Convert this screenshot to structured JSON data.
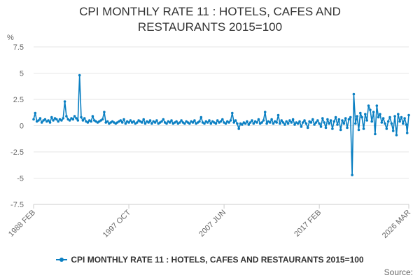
{
  "chart_data": {
    "type": "line",
    "title_lines": [
      "CPI MONTHLY RATE 11 : HOTELS, CAFES AND",
      "RESTAURANTS 2015=100"
    ],
    "ylabel": "%",
    "ylim": [
      -7.5,
      7.5
    ],
    "yticks": [
      "7.5",
      "5",
      "2.5",
      "0",
      "-2.5",
      "-5",
      "-7.5"
    ],
    "ytick_values": [
      7.5,
      5,
      2.5,
      0,
      -2.5,
      -5,
      -7.5
    ],
    "xlim": [
      "1988-02",
      "2026-03"
    ],
    "xticks": [
      {
        "label": "1988 FEB",
        "date": "1988-02"
      },
      {
        "label": "1997 OCT",
        "date": "1997-10"
      },
      {
        "label": "2007 JUN",
        "date": "2007-06"
      },
      {
        "label": "2017 FEB",
        "date": "2017-02"
      },
      {
        "label": "2026 MAR",
        "date": "2026-03"
      }
    ],
    "grid": true,
    "legend_position": "bottom",
    "series": [
      {
        "name": "CPI MONTHLY RATE 11 : HOTELS, CAFES AND RESTAURANTS 2015=100",
        "color": "#0a7fc2",
        "points": [
          [
            "1988-02",
            0.6
          ],
          [
            "1988-04",
            1.2
          ],
          [
            "1988-06",
            0.4
          ],
          [
            "1988-08",
            0.5
          ],
          [
            "1988-10",
            0.7
          ],
          [
            "1988-12",
            0.3
          ],
          [
            "1989-02",
            0.5
          ],
          [
            "1989-04",
            0.6
          ],
          [
            "1989-06",
            0.4
          ],
          [
            "1989-08",
            0.5
          ],
          [
            "1989-10",
            0.3
          ],
          [
            "1989-12",
            0.8
          ],
          [
            "1990-02",
            0.5
          ],
          [
            "1990-04",
            0.7
          ],
          [
            "1990-06",
            0.6
          ],
          [
            "1990-08",
            0.4
          ],
          [
            "1990-10",
            0.6
          ],
          [
            "1990-12",
            0.5
          ],
          [
            "1991-02",
            0.7
          ],
          [
            "1991-04",
            2.3
          ],
          [
            "1991-06",
            0.9
          ],
          [
            "1991-08",
            0.6
          ],
          [
            "1991-10",
            0.5
          ],
          [
            "1991-12",
            0.7
          ],
          [
            "1992-02",
            0.6
          ],
          [
            "1992-04",
            0.9
          ],
          [
            "1992-06",
            0.7
          ],
          [
            "1992-08",
            0.5
          ],
          [
            "1992-10",
            4.8
          ],
          [
            "1992-12",
            0.8
          ],
          [
            "1993-02",
            0.5
          ],
          [
            "1993-04",
            0.7
          ],
          [
            "1993-06",
            0.4
          ],
          [
            "1993-08",
            0.3
          ],
          [
            "1993-10",
            0.5
          ],
          [
            "1993-12",
            0.4
          ],
          [
            "1994-02",
            0.9
          ],
          [
            "1994-04",
            0.5
          ],
          [
            "1994-06",
            0.4
          ],
          [
            "1994-08",
            0.3
          ],
          [
            "1994-10",
            0.4
          ],
          [
            "1994-12",
            0.5
          ],
          [
            "1995-02",
            0.6
          ],
          [
            "1995-04",
            1.3
          ],
          [
            "1995-06",
            0.3
          ],
          [
            "1995-08",
            0.4
          ],
          [
            "1995-10",
            0.2
          ],
          [
            "1995-12",
            0.3
          ],
          [
            "1996-02",
            0.4
          ],
          [
            "1996-04",
            0.3
          ],
          [
            "1996-06",
            0.2
          ],
          [
            "1996-08",
            0.3
          ],
          [
            "1996-10",
            0.4
          ],
          [
            "1996-12",
            0.5
          ],
          [
            "1997-02",
            0.3
          ],
          [
            "1997-04",
            0.6
          ],
          [
            "1997-06",
            0.2
          ],
          [
            "1997-08",
            0.4
          ],
          [
            "1997-10",
            0.3
          ],
          [
            "1997-12",
            0.5
          ],
          [
            "1998-02",
            0.3
          ],
          [
            "1998-04",
            0.4
          ],
          [
            "1998-06",
            0.2
          ],
          [
            "1998-08",
            0.3
          ],
          [
            "1998-10",
            0.5
          ],
          [
            "1998-12",
            0.4
          ],
          [
            "1999-02",
            0.3
          ],
          [
            "1999-04",
            0.6
          ],
          [
            "1999-06",
            0.2
          ],
          [
            "1999-08",
            0.4
          ],
          [
            "1999-10",
            0.3
          ],
          [
            "1999-12",
            0.5
          ],
          [
            "2000-02",
            0.2
          ],
          [
            "2000-04",
            0.4
          ],
          [
            "2000-06",
            0.3
          ],
          [
            "2000-08",
            0.5
          ],
          [
            "2000-10",
            0.2
          ],
          [
            "2000-12",
            0.3
          ],
          [
            "2001-02",
            0.4
          ],
          [
            "2001-04",
            0.6
          ],
          [
            "2001-06",
            0.3
          ],
          [
            "2001-08",
            0.2
          ],
          [
            "2001-10",
            0.4
          ],
          [
            "2001-12",
            0.3
          ],
          [
            "2002-02",
            0.5
          ],
          [
            "2002-04",
            0.2
          ],
          [
            "2002-06",
            0.3
          ],
          [
            "2002-08",
            0.4
          ],
          [
            "2002-10",
            0.2
          ],
          [
            "2002-12",
            0.3
          ],
          [
            "2003-02",
            0.5
          ],
          [
            "2003-04",
            0.3
          ],
          [
            "2003-06",
            0.2
          ],
          [
            "2003-08",
            0.4
          ],
          [
            "2003-10",
            0.3
          ],
          [
            "2003-12",
            0.2
          ],
          [
            "2004-02",
            0.4
          ],
          [
            "2004-04",
            0.3
          ],
          [
            "2004-06",
            0.5
          ],
          [
            "2004-08",
            0.2
          ],
          [
            "2004-10",
            0.3
          ],
          [
            "2004-12",
            0.4
          ],
          [
            "2005-02",
            0.8
          ],
          [
            "2005-04",
            0.3
          ],
          [
            "2005-06",
            0.2
          ],
          [
            "2005-08",
            0.4
          ],
          [
            "2005-10",
            0.3
          ],
          [
            "2005-12",
            0.5
          ],
          [
            "2006-02",
            0.2
          ],
          [
            "2006-04",
            0.4
          ],
          [
            "2006-06",
            0.3
          ],
          [
            "2006-08",
            0.2
          ],
          [
            "2006-10",
            0.5
          ],
          [
            "2006-12",
            0.3
          ],
          [
            "2007-02",
            0.4
          ],
          [
            "2007-04",
            0.6
          ],
          [
            "2007-06",
            0.3
          ],
          [
            "2007-08",
            0.2
          ],
          [
            "2007-10",
            0.4
          ],
          [
            "2007-12",
            0.3
          ],
          [
            "2008-02",
            0.5
          ],
          [
            "2008-04",
            1.2
          ],
          [
            "2008-06",
            0.3
          ],
          [
            "2008-08",
            0.5
          ],
          [
            "2008-10",
            0.2
          ],
          [
            "2008-12",
            -0.3
          ],
          [
            "2009-02",
            0.2
          ],
          [
            "2009-04",
            0.1
          ],
          [
            "2009-06",
            0.3
          ],
          [
            "2009-08",
            0.2
          ],
          [
            "2009-10",
            0.4
          ],
          [
            "2009-12",
            0.1
          ],
          [
            "2010-02",
            0.3
          ],
          [
            "2010-04",
            0.5
          ],
          [
            "2010-06",
            0.2
          ],
          [
            "2010-08",
            0.4
          ],
          [
            "2010-10",
            0.3
          ],
          [
            "2010-12",
            0.6
          ],
          [
            "2011-02",
            0.2
          ],
          [
            "2011-04",
            0.3
          ],
          [
            "2011-06",
            0.5
          ],
          [
            "2011-08",
            1.3
          ],
          [
            "2011-10",
            0.2
          ],
          [
            "2011-12",
            0.4
          ],
          [
            "2012-02",
            0.3
          ],
          [
            "2012-04",
            0.6
          ],
          [
            "2012-06",
            0.2
          ],
          [
            "2012-08",
            0.4
          ],
          [
            "2012-10",
            0.3
          ],
          [
            "2012-12",
            1.0
          ],
          [
            "2013-02",
            0.2
          ],
          [
            "2013-04",
            0.5
          ],
          [
            "2013-06",
            0.3
          ],
          [
            "2013-08",
            0.1
          ],
          [
            "2013-10",
            0.4
          ],
          [
            "2013-12",
            0.2
          ],
          [
            "2014-02",
            0.5
          ],
          [
            "2014-04",
            0.3
          ],
          [
            "2014-06",
            0.6
          ],
          [
            "2014-08",
            0.1
          ],
          [
            "2014-10",
            0.3
          ],
          [
            "2014-12",
            0.2
          ],
          [
            "2015-02",
            0.4
          ],
          [
            "2015-04",
            -0.1
          ],
          [
            "2015-06",
            0.3
          ],
          [
            "2015-08",
            0.5
          ],
          [
            "2015-10",
            0.2
          ],
          [
            "2015-12",
            -0.2
          ],
          [
            "2016-02",
            0.4
          ],
          [
            "2016-04",
            0.3
          ],
          [
            "2016-06",
            0.6
          ],
          [
            "2016-08",
            0.1
          ],
          [
            "2016-10",
            0.3
          ],
          [
            "2016-12",
            0.5
          ],
          [
            "2017-02",
            0.2
          ],
          [
            "2017-04",
            -0.1
          ],
          [
            "2017-06",
            0.7
          ],
          [
            "2017-08",
            0.3
          ],
          [
            "2017-10",
            -0.2
          ],
          [
            "2017-12",
            0.6
          ],
          [
            "2018-02",
            0.2
          ],
          [
            "2018-04",
            0.5
          ],
          [
            "2018-06",
            -0.3
          ],
          [
            "2018-08",
            0.4
          ],
          [
            "2018-10",
            0.8
          ],
          [
            "2018-12",
            0.1
          ],
          [
            "2019-02",
            0.6
          ],
          [
            "2019-04",
            -0.4
          ],
          [
            "2019-06",
            0.5
          ],
          [
            "2019-08",
            0.2
          ],
          [
            "2019-10",
            0.7
          ],
          [
            "2019-12",
            -0.2
          ],
          [
            "2020-02",
            0.6
          ],
          [
            "2020-04",
            0.8
          ],
          [
            "2020-06",
            -4.7
          ],
          [
            "2020-08",
            3.0
          ],
          [
            "2020-10",
            0.2
          ],
          [
            "2020-12",
            0.9
          ],
          [
            "2021-02",
            -0.4
          ],
          [
            "2021-04",
            1.2
          ],
          [
            "2021-06",
            0.8
          ],
          [
            "2021-08",
            -0.3
          ],
          [
            "2021-10",
            1.1
          ],
          [
            "2021-12",
            0.5
          ],
          [
            "2022-02",
            1.9
          ],
          [
            "2022-04",
            1.5
          ],
          [
            "2022-06",
            0.4
          ],
          [
            "2022-08",
            1.3
          ],
          [
            "2022-10",
            -0.8
          ],
          [
            "2022-12",
            1.9
          ],
          [
            "2023-02",
            0.8
          ],
          [
            "2023-04",
            1.1
          ],
          [
            "2023-06",
            0.3
          ],
          [
            "2023-08",
            0.7
          ],
          [
            "2023-10",
            0.2
          ],
          [
            "2023-12",
            -0.3
          ],
          [
            "2024-02",
            0.4
          ],
          [
            "2024-04",
            0.8
          ],
          [
            "2024-06",
            0.2
          ],
          [
            "2024-08",
            -0.5
          ],
          [
            "2024-10",
            0.9
          ],
          [
            "2024-12",
            -0.9
          ],
          [
            "2025-02",
            1.1
          ],
          [
            "2025-04",
            0.4
          ],
          [
            "2025-06",
            0.8
          ],
          [
            "2025-08",
            0.2
          ],
          [
            "2025-10",
            0.7
          ],
          [
            "2025-12",
            0.1
          ],
          [
            "2026-01",
            -0.7
          ],
          [
            "2026-03",
            1.0
          ]
        ]
      }
    ]
  },
  "legend": {
    "label": "CPI MONTHLY RATE 11 : HOTELS, CAFES AND RESTAURANTS 2015=100"
  },
  "source_label": "Source:"
}
